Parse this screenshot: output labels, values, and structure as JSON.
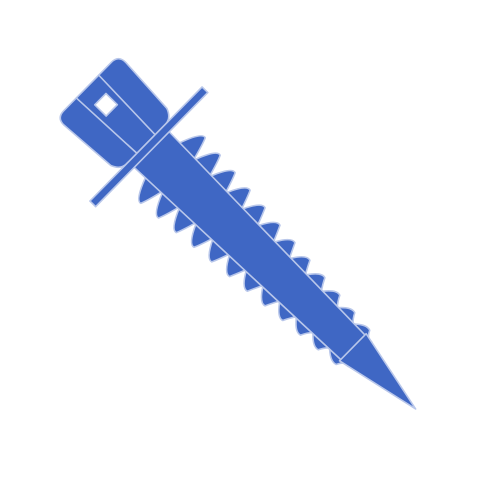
{
  "illustration": {
    "subject": "hex-washer-head-concrete-screw-icon",
    "colors": {
      "fill": "#3f67c4",
      "stroke": "#b9c7ea",
      "background": "#ffffff"
    },
    "thread_count": 12
  }
}
